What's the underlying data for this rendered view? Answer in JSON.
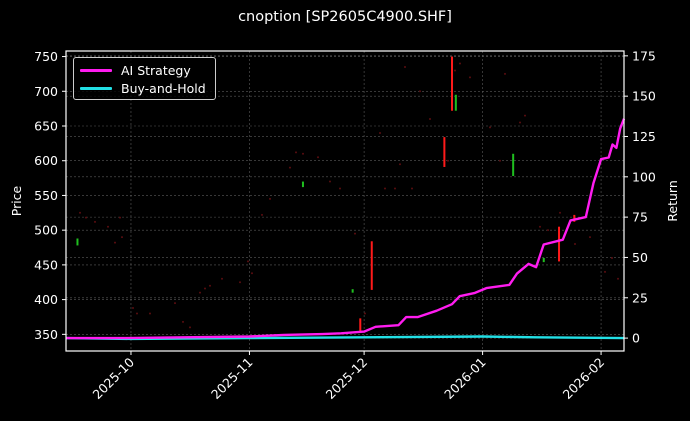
{
  "chart_data": {
    "type": "line",
    "title": "cnoption [SP2605C4900.SHF]",
    "xlabel": "",
    "ylabel_left": "Price",
    "ylabel_right": "Return",
    "x_tick_labels": [
      "2025-10",
      "2025-11",
      "2025-12",
      "2026-01",
      "2026-02"
    ],
    "y_left_ticks": [
      350,
      400,
      450,
      500,
      550,
      600,
      650,
      700,
      750
    ],
    "y_right_ticks": [
      0,
      25,
      50,
      75,
      100,
      125,
      150,
      175
    ],
    "ylim_left": [
      326,
      758
    ],
    "ylim_right": [
      -8,
      178
    ],
    "xlim": [
      "2025-09-14",
      "2026-02-07"
    ],
    "grid": true,
    "legend_position": "upper left",
    "legend": [
      "AI Strategy",
      "Buy-and-Hold"
    ],
    "colors": {
      "ai_strategy": "#ff1cf0",
      "buy_and_hold": "#22e0e6",
      "candle_up": "#1fbf1f",
      "candle_down": "#ff1a1a",
      "background": "#000000",
      "grid": "#5a5a5a",
      "axes": "#ffffff"
    },
    "series": [
      {
        "name": "AI Strategy",
        "axis": "right",
        "points": [
          [
            "2025-09-14",
            0
          ],
          [
            "2025-09-30",
            0
          ],
          [
            "2025-10-15",
            0.5
          ],
          [
            "2025-11-01",
            1
          ],
          [
            "2025-11-10",
            2
          ],
          [
            "2025-11-20",
            2.5
          ],
          [
            "2025-11-25",
            3
          ],
          [
            "2025-12-01",
            4
          ],
          [
            "2025-12-04",
            7
          ],
          [
            "2025-12-10",
            8
          ],
          [
            "2025-12-12",
            13
          ],
          [
            "2025-12-15",
            13
          ],
          [
            "2025-12-20",
            17
          ],
          [
            "2025-12-24",
            21
          ],
          [
            "2025-12-26",
            26
          ],
          [
            "2025-12-30",
            28
          ],
          [
            "2026-01-02",
            31
          ],
          [
            "2026-01-08",
            33
          ],
          [
            "2026-01-10",
            40
          ],
          [
            "2026-01-13",
            46
          ],
          [
            "2026-01-15",
            44
          ],
          [
            "2026-01-17",
            58
          ],
          [
            "2026-01-22",
            61
          ],
          [
            "2026-01-24",
            73
          ],
          [
            "2026-01-28",
            75
          ],
          [
            "2026-01-30",
            96
          ],
          [
            "2026-02-01",
            111
          ],
          [
            "2026-02-03",
            112
          ],
          [
            "2026-02-04",
            120
          ],
          [
            "2026-02-05",
            118
          ],
          [
            "2026-02-06",
            130
          ],
          [
            "2026-02-07",
            136
          ]
        ]
      },
      {
        "name": "Buy-and-Hold",
        "axis": "right",
        "points": [
          [
            "2025-09-14",
            0
          ],
          [
            "2025-10-01",
            -0.5
          ],
          [
            "2025-11-01",
            0
          ],
          [
            "2025-12-01",
            0.5
          ],
          [
            "2026-01-01",
            1
          ],
          [
            "2026-01-15",
            0.5
          ],
          [
            "2026-02-07",
            0
          ]
        ]
      }
    ],
    "candles": [
      {
        "date": "2025-09-17",
        "low": 478,
        "high": 488,
        "dir": "up"
      },
      {
        "date": "2025-11-15",
        "low": 562,
        "high": 570,
        "dir": "up"
      },
      {
        "date": "2025-11-28",
        "low": 410,
        "high": 415,
        "dir": "up"
      },
      {
        "date": "2025-11-30",
        "low": 352,
        "high": 373,
        "dir": "down"
      },
      {
        "date": "2025-12-03",
        "low": 414,
        "high": 484,
        "dir": "down"
      },
      {
        "date": "2025-12-22",
        "low": 591,
        "high": 634,
        "dir": "down"
      },
      {
        "date": "2025-12-24",
        "low": 672,
        "high": 750,
        "dir": "down"
      },
      {
        "date": "2025-12-25",
        "low": 672,
        "high": 695,
        "dir": "up"
      },
      {
        "date": "2026-01-09",
        "low": 578,
        "high": 610,
        "dir": "up"
      },
      {
        "date": "2026-01-17",
        "low": 454,
        "high": 460,
        "dir": "up"
      },
      {
        "date": "2026-01-21",
        "low": 455,
        "high": 505,
        "dir": "down"
      },
      {
        "date": "2026-01-25",
        "low": 512,
        "high": 522,
        "dir": "down"
      }
    ]
  }
}
